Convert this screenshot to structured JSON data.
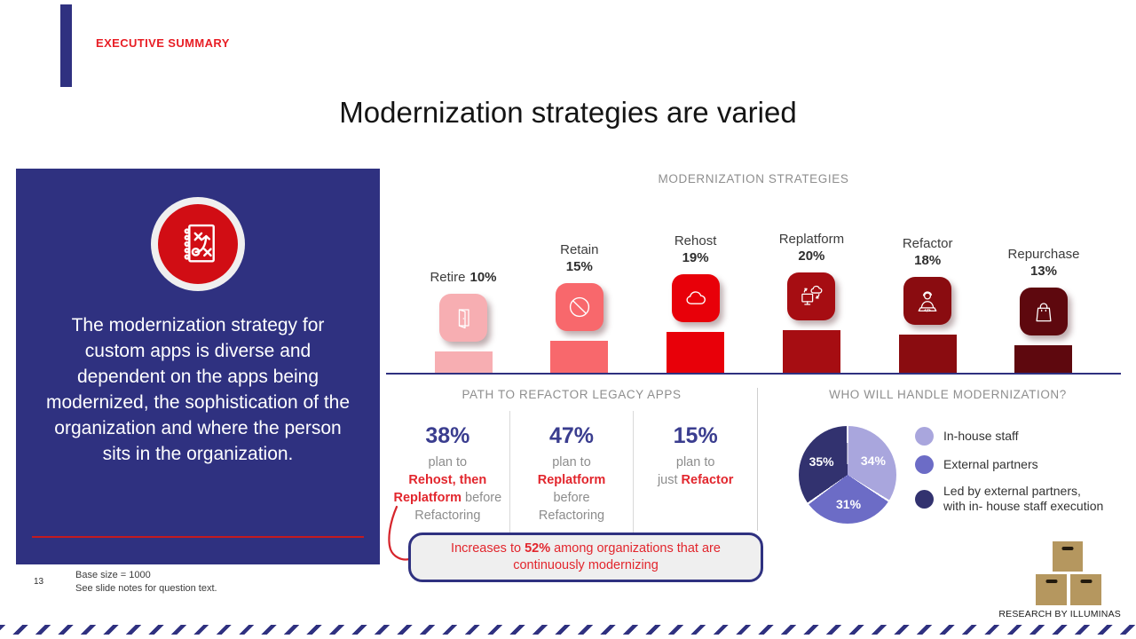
{
  "header": {
    "eyebrow": "EXECUTIVE SUMMARY",
    "title": "Modernization strategies are varied"
  },
  "sidebar": {
    "icon": "strategy-playbook-icon",
    "text": "The modernization strategy for custom apps is diverse and dependent on the apps being modernized, the sophistication of the organization and where the person sits in the organization.",
    "bg_color": "#2F3180",
    "badge_color": "#D10D14"
  },
  "chart_data": [
    {
      "type": "bar",
      "title": "MODERNIZATION STRATEGIES",
      "categories": [
        "Retire",
        "Retain",
        "Rehost",
        "Replatform",
        "Refactor",
        "Repurchase"
      ],
      "values": [
        10,
        15,
        19,
        20,
        18,
        13
      ],
      "unit": "%",
      "colors": [
        "#F7AEB2",
        "#F8686C",
        "#E80009",
        "#A60D12",
        "#8A0C10",
        "#5E080E"
      ],
      "icons": [
        "door-icon",
        "prohibition-icon",
        "cloud-icon",
        "monitor-cloud-migration-icon",
        "developer-laptop-icon",
        "shopping-bag-icon"
      ],
      "label_layout": [
        "inline",
        "stacked",
        "stacked",
        "stacked",
        "stacked",
        "stacked"
      ],
      "ylim": [
        0,
        20
      ],
      "grid": false,
      "baseline_color": "#2F3180"
    },
    {
      "type": "pie",
      "title": "WHO WILL HANDLE MODERNIZATION?",
      "values": [
        34,
        31,
        35
      ],
      "labels": [
        "34%",
        "31%",
        "35%"
      ],
      "colors": [
        "#A9A6DD",
        "#6C6CC6",
        "#32326F"
      ],
      "start_angle": "top",
      "direction": "clockwise",
      "legend_position": "right",
      "legend": [
        {
          "line1": "In-house staff",
          "line2": ""
        },
        {
          "line1": "External partners",
          "line2": ""
        },
        {
          "line1": "Led by external partners,",
          "line2": "with in- house staff execution"
        }
      ]
    }
  ],
  "path_section": {
    "title": "PATH TO REFACTOR LEGACY APPS",
    "columns": [
      {
        "value": "38%",
        "line1": "plan to",
        "pre2": "",
        "highlight": "Rehost, then Replatform",
        "post": " before Refactoring"
      },
      {
        "value": "47%",
        "line1": "plan to",
        "pre2": "",
        "highlight": "Replatform",
        "post": " before Refactoring"
      },
      {
        "value": "15%",
        "line1": "plan to",
        "pre2": "just ",
        "highlight": "Refactor",
        "post": ""
      }
    ],
    "callout": {
      "pre": "Increases to ",
      "bold": "52%",
      "post": " among organizations that are continuously modernizing"
    }
  },
  "footer": {
    "page_number": "13",
    "note1": "Base size = 1000",
    "note2": "See slide notes for question text.",
    "credit": "RESEARCH BY ILLUMINAS"
  },
  "theme": {
    "navy": "#2F3180",
    "brand_red": "#E81E25",
    "highlight_red": "#E2262D",
    "callout_bg": "#EFEFEF",
    "divider_gray": "#D9D9D9",
    "logo_box_tan": "#B5975F"
  }
}
